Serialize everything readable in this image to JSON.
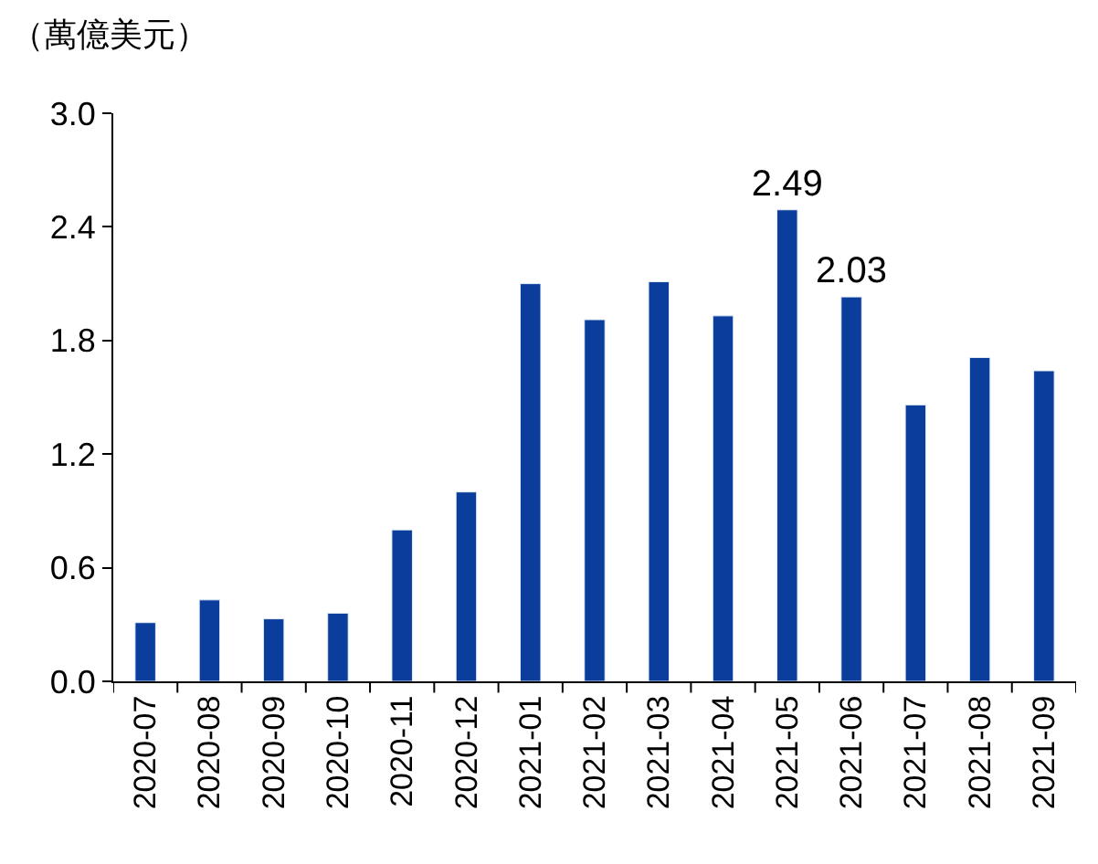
{
  "chart_data": {
    "type": "bar",
    "ylabel": "（萬億美元）",
    "categories": [
      "2020-07",
      "2020-08",
      "2020-09",
      "2020-10",
      "2020-11",
      "2020-12",
      "2021-01",
      "2021-02",
      "2021-03",
      "2021-04",
      "2021-05",
      "2021-06",
      "2021-07",
      "2021-08",
      "2021-09"
    ],
    "values": [
      0.31,
      0.43,
      0.33,
      0.36,
      0.8,
      1.0,
      2.1,
      1.91,
      2.11,
      1.93,
      2.49,
      2.03,
      1.46,
      1.71,
      1.64
    ],
    "value_labels": [
      null,
      null,
      null,
      null,
      null,
      null,
      null,
      null,
      null,
      null,
      "2.49",
      "2.03",
      null,
      null,
      null
    ],
    "color": "#0a3d9c",
    "ylim": [
      0,
      3.0
    ],
    "yticks": [
      {
        "value": 0,
        "label": "0.0"
      },
      0.6,
      1.2,
      1.8,
      2.4,
      {
        "value": 3,
        "label": "3.0"
      }
    ]
  }
}
